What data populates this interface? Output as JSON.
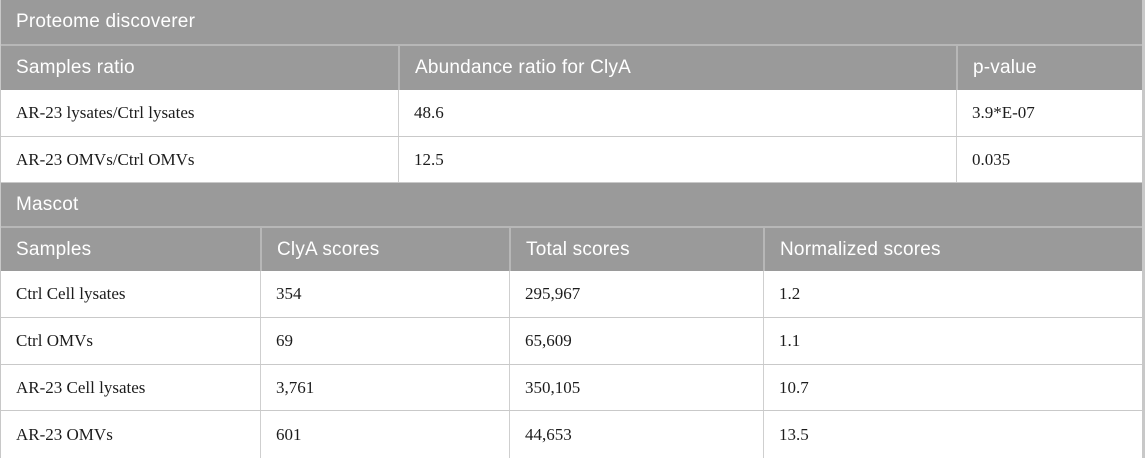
{
  "colors": {
    "header_bg": "#9a9a9a",
    "header_text": "#ffffff",
    "header_divider": "#b7b7b7",
    "row_border": "#c9c9c9",
    "cell_divider": "#cfcfcf",
    "edge_border": "#c8c8c8",
    "data_text": "#1c1c1c"
  },
  "proteome_table": {
    "section_title": "Proteome discoverer",
    "columns": [
      "Samples ratio",
      "Abundance ratio for ClyA",
      "p-value"
    ],
    "rows": [
      [
        "AR-23 lysates/Ctrl lysates",
        "48.6",
        "3.9*E-07"
      ],
      [
        "AR-23 OMVs/Ctrl OMVs",
        "12.5",
        "0.035"
      ]
    ]
  },
  "mascot_table": {
    "section_title": "Mascot",
    "columns": [
      "Samples",
      "ClyA scores",
      "Total scores",
      "Normalized scores"
    ],
    "rows": [
      [
        "Ctrl Cell lysates",
        "354",
        "295,967",
        "1.2"
      ],
      [
        "Ctrl OMVs",
        "69",
        "65,609",
        "1.1"
      ],
      [
        "AR-23 Cell lysates",
        "3,761",
        "350,105",
        "10.7"
      ],
      [
        "AR-23 OMVs",
        "601",
        "44,653",
        "13.5"
      ]
    ]
  }
}
